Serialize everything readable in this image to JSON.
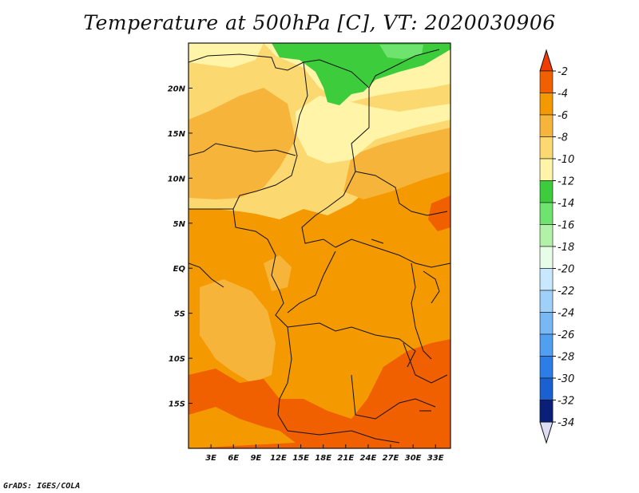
{
  "title": "Temperature at 500hPa [C], VT: 2020030906",
  "credit": "GrADS: IGES/COLA",
  "map": {
    "lon_range": [
      0,
      35
    ],
    "lat_range": [
      -20,
      25
    ],
    "x_ticks": [
      {
        "value": 3,
        "label": "3E"
      },
      {
        "value": 6,
        "label": "6E"
      },
      {
        "value": 9,
        "label": "9E"
      },
      {
        "value": 12,
        "label": "12E"
      },
      {
        "value": 15,
        "label": "15E"
      },
      {
        "value": 18,
        "label": "18E"
      },
      {
        "value": 21,
        "label": "21E"
      },
      {
        "value": 24,
        "label": "24E"
      },
      {
        "value": 27,
        "label": "27E"
      },
      {
        "value": 30,
        "label": "30E"
      },
      {
        "value": 33,
        "label": "33E"
      }
    ],
    "y_ticks": [
      {
        "value": 20,
        "label": "20N"
      },
      {
        "value": 15,
        "label": "15N"
      },
      {
        "value": 10,
        "label": "10N"
      },
      {
        "value": 5,
        "label": "5N"
      },
      {
        "value": 0,
        "label": "EQ"
      },
      {
        "value": -5,
        "label": "5S"
      },
      {
        "value": -10,
        "label": "10S"
      },
      {
        "value": -15,
        "label": "15S"
      }
    ]
  },
  "colorbar": {
    "levels": [
      {
        "label": "-2",
        "color": "#f06000"
      },
      {
        "label": "-4",
        "color": "#f49a00"
      },
      {
        "label": "-6",
        "color": "#f6b53a"
      },
      {
        "label": "-8",
        "color": "#fcd870"
      },
      {
        "label": "-10",
        "color": "#fff4a8"
      },
      {
        "label": "-12",
        "color": "#3ccc3c"
      },
      {
        "label": "-14",
        "color": "#6ee46e"
      },
      {
        "label": "-16",
        "color": "#b2f2a8"
      },
      {
        "label": "-18",
        "color": "#e8fde8"
      },
      {
        "label": "-20",
        "color": "#c8e8ff"
      },
      {
        "label": "-22",
        "color": "#a0d0fa"
      },
      {
        "label": "-24",
        "color": "#78b8f4"
      },
      {
        "label": "-26",
        "color": "#509ff0"
      },
      {
        "label": "-28",
        "color": "#2c7ee6"
      },
      {
        "label": "-30",
        "color": "#1a60d0"
      },
      {
        "label": "-32",
        "color": "#0e3ea8"
      },
      {
        "label": "-34",
        "color": "#0a1f78"
      }
    ],
    "top_arrow_color": "#f03c00",
    "bottom_arrow_color": "#ddddf4"
  }
}
